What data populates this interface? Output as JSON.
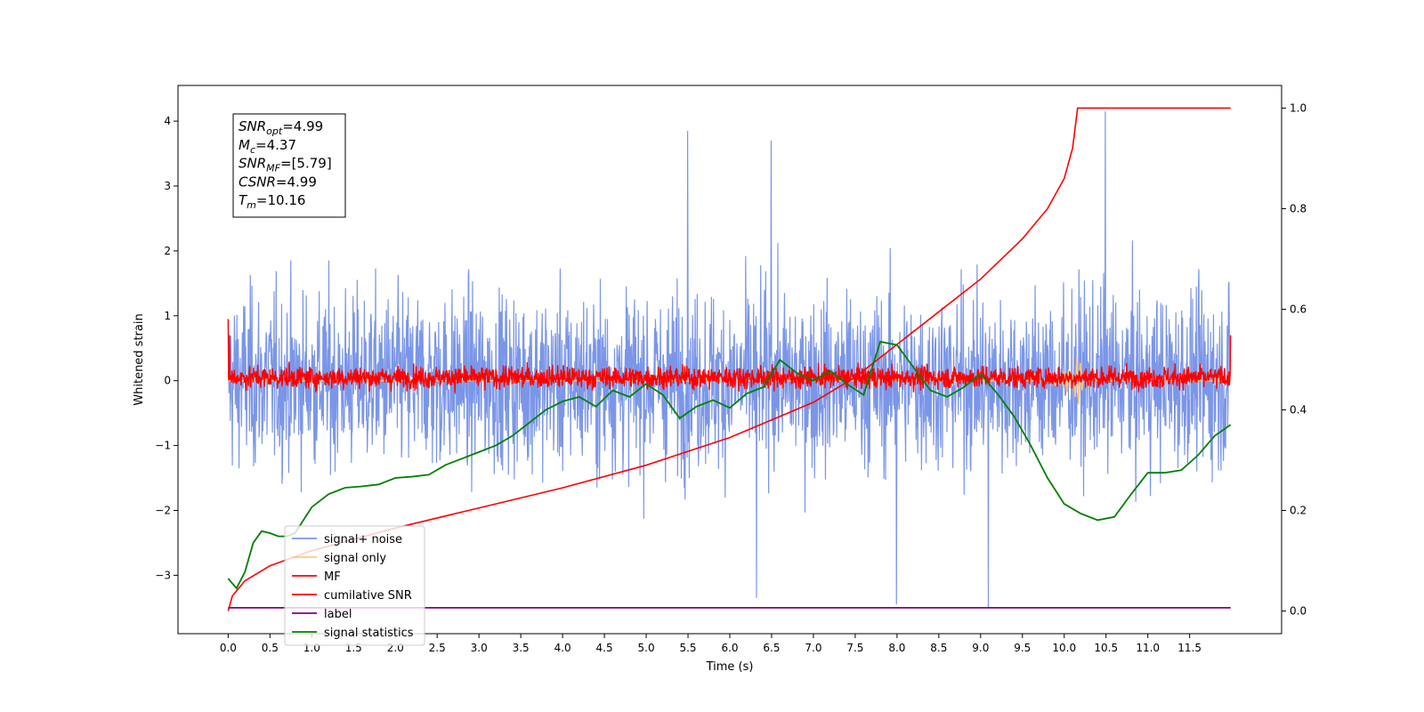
{
  "chart_data": {
    "type": "line",
    "xlabel": "Time (s)",
    "ylabel": "Whitened strain",
    "xlim": [
      -0.6,
      12.6
    ],
    "ylim": [
      -3.9,
      4.55
    ],
    "y2lim": [
      -0.045,
      1.045
    ],
    "xticks": [
      0.0,
      0.5,
      1.0,
      1.5,
      2.0,
      2.5,
      3.0,
      3.5,
      4.0,
      4.5,
      5.0,
      5.5,
      6.0,
      6.5,
      7.0,
      7.5,
      8.0,
      8.5,
      9.0,
      9.5,
      10.0,
      10.5,
      11.0,
      11.5
    ],
    "xtick_labels": [
      "0.0",
      "0.5",
      "1.0",
      "1.5",
      "2.0",
      "2.5",
      "3.0",
      "3.5",
      "4.0",
      "4.5",
      "5.0",
      "5.5",
      "6.0",
      "6.5",
      "7.0",
      "7.5",
      "8.0",
      "8.5",
      "9.0",
      "9.5",
      "10.0",
      "10.5",
      "11.0",
      "11.5"
    ],
    "yticks": [
      -3,
      -2,
      -1,
      0,
      1,
      2,
      3,
      4
    ],
    "ytick_labels": [
      "−3",
      "−2",
      "−1",
      "0",
      "1",
      "2",
      "3",
      "4"
    ],
    "y2ticks": [
      0.0,
      0.2,
      0.4,
      0.6,
      0.8,
      1.0
    ],
    "y2tick_labels": [
      "0.0",
      "0.2",
      "0.4",
      "0.6",
      "0.8",
      "1.0"
    ],
    "grid": false,
    "legend_position": "lower-left",
    "annotation": {
      "lines": [
        {
          "sym": "SNR",
          "sub": "opt",
          "val": "=4.99"
        },
        {
          "sym": "M",
          "sub": "c",
          "val": "=4.37"
        },
        {
          "sym": "SNR",
          "sub": "MF",
          "val": "=[5.79]"
        },
        {
          "sym": "CSNR",
          "sub": "",
          "val": "=4.99"
        },
        {
          "sym": "T",
          "sub": "m",
          "val": "=10.16"
        }
      ]
    },
    "series": [
      {
        "name": "signal+ noise",
        "axis": "left",
        "color": "#7b96e8",
        "x_range": [
          0,
          11.99
        ],
        "mean": 0.0,
        "envelope": [
          -2.2,
          2.2
        ],
        "extremes": [
          3.85,
          3.7,
          4.15,
          -3.45,
          -3.5,
          -3.35
        ]
      },
      {
        "name": "signal only",
        "axis": "left",
        "color": "#ffc87a",
        "x_range": [
          0,
          11.99
        ],
        "values_note": "near zero",
        "peak_x": 10.16,
        "peak_y": 0.4
      },
      {
        "name": "MF",
        "axis": "left",
        "color": "#ff0000",
        "x_range": [
          0,
          11.99
        ],
        "envelope": [
          -0.25,
          0.45
        ],
        "start_value": 0.95
      },
      {
        "name": "cumilative SNR",
        "axis": "right",
        "color": "#ff0000",
        "x": [
          0.0,
          0.05,
          0.2,
          0.5,
          1.0,
          2.0,
          3.0,
          4.0,
          5.0,
          6.0,
          7.0,
          7.5,
          8.0,
          8.5,
          9.0,
          9.5,
          9.8,
          10.0,
          10.1,
          10.16,
          11.99
        ],
        "y": [
          0.0,
          0.03,
          0.06,
          0.09,
          0.12,
          0.165,
          0.205,
          0.245,
          0.29,
          0.345,
          0.415,
          0.465,
          0.53,
          0.595,
          0.66,
          0.74,
          0.8,
          0.86,
          0.92,
          1.0,
          1.0
        ]
      },
      {
        "name": "label",
        "axis": "left",
        "color": "#800080",
        "x": [
          0.0,
          11.99
        ],
        "y": [
          -3.5,
          -3.5
        ]
      },
      {
        "name": "signal statistics",
        "axis": "left",
        "color": "#008000",
        "x": [
          0.0,
          0.1,
          0.2,
          0.3,
          0.4,
          0.5,
          0.6,
          0.7,
          0.8,
          1.0,
          1.2,
          1.4,
          1.6,
          1.8,
          2.0,
          2.2,
          2.4,
          2.6,
          2.8,
          3.0,
          3.2,
          3.4,
          3.6,
          3.8,
          4.0,
          4.2,
          4.4,
          4.6,
          4.8,
          5.0,
          5.2,
          5.4,
          5.6,
          5.8,
          6.0,
          6.2,
          6.4,
          6.6,
          6.8,
          7.0,
          7.2,
          7.4,
          7.6,
          7.8,
          8.0,
          8.2,
          8.4,
          8.6,
          8.8,
          9.0,
          9.2,
          9.4,
          9.6,
          9.8,
          10.0,
          10.2,
          10.4,
          10.6,
          10.8,
          11.0,
          11.2,
          11.4,
          11.6,
          11.8,
          11.99
        ],
        "y": [
          -3.05,
          -3.2,
          -2.95,
          -2.5,
          -2.32,
          -2.35,
          -2.4,
          -2.4,
          -2.35,
          -1.95,
          -1.75,
          -1.65,
          -1.63,
          -1.6,
          -1.5,
          -1.48,
          -1.45,
          -1.3,
          -1.2,
          -1.1,
          -1.0,
          -0.85,
          -0.65,
          -0.45,
          -0.32,
          -0.25,
          -0.4,
          -0.15,
          -0.25,
          -0.05,
          -0.22,
          -0.58,
          -0.4,
          -0.3,
          -0.42,
          -0.2,
          -0.1,
          0.32,
          0.12,
          0.0,
          0.15,
          -0.05,
          -0.22,
          0.6,
          0.55,
          0.2,
          -0.15,
          -0.25,
          -0.1,
          0.1,
          -0.2,
          -0.55,
          -1.0,
          -1.5,
          -1.9,
          -2.05,
          -2.15,
          -2.1,
          -1.75,
          -1.42,
          -1.42,
          -1.38,
          -1.15,
          -0.85,
          -0.68
        ]
      }
    ]
  }
}
